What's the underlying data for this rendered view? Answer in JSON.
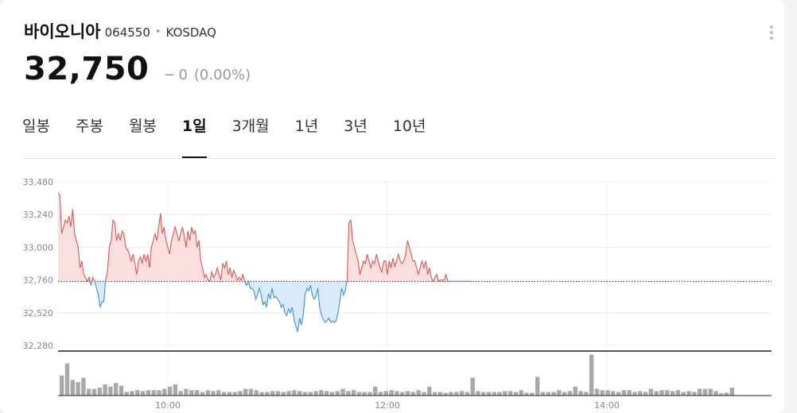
{
  "stock": {
    "name": "바이오니아",
    "code": "064550",
    "market": "KOSDAQ",
    "price": "32,750",
    "change_sign": "−",
    "change": "0",
    "change_pct": "(0.00%)"
  },
  "tabs": [
    {
      "label": "일봉",
      "active": false
    },
    {
      "label": "주봉",
      "active": false
    },
    {
      "label": "월봉",
      "active": false
    },
    {
      "label": "1일",
      "active": true
    },
    {
      "label": "3개월",
      "active": false
    },
    {
      "label": "1년",
      "active": false
    },
    {
      "label": "3년",
      "active": false
    },
    {
      "label": "10년",
      "active": false
    }
  ],
  "colors": {
    "up": "#e05555",
    "up_fill": "#fbdede",
    "down": "#3d8fd6",
    "down_fill": "#d9ebfb",
    "volume": "#a8a8a8"
  },
  "chart_data": {
    "type": "area",
    "y_ticks": [
      "33,480",
      "33,240",
      "33,000",
      "32,760",
      "32,520",
      "32,280"
    ],
    "y_tick_values": [
      33480,
      33240,
      33000,
      32760,
      32520,
      32280
    ],
    "ylim": [
      32280,
      33480
    ],
    "baseline": 32750,
    "x_ticks": [
      "10:00",
      "12:00",
      "14:00"
    ],
    "x_tick_minutes": [
      600,
      720,
      840
    ],
    "xlim": [
      540,
      930
    ],
    "series": [
      {
        "points": [
          [
            540,
            33400
          ],
          [
            541,
            33380
          ],
          [
            542,
            33100
          ],
          [
            543,
            33150
          ],
          [
            544,
            33200
          ],
          [
            545,
            33180
          ],
          [
            546,
            33230
          ],
          [
            547,
            33150
          ],
          [
            548,
            33280
          ],
          [
            549,
            33100
          ],
          [
            550,
            33050
          ],
          [
            551,
            33000
          ],
          [
            552,
            32850
          ],
          [
            553,
            32900
          ],
          [
            554,
            32800
          ],
          [
            555,
            32780
          ],
          [
            556,
            32750
          ],
          [
            557,
            32780
          ],
          [
            558,
            32720
          ],
          [
            559,
            32780
          ],
          [
            560,
            32750
          ],
          [
            561,
            32700
          ],
          [
            562,
            32650
          ],
          [
            563,
            32560
          ],
          [
            564,
            32600
          ],
          [
            565,
            32600
          ],
          [
            566,
            32760
          ],
          [
            567,
            32820
          ],
          [
            568,
            33000
          ],
          [
            569,
            33050
          ],
          [
            570,
            33200
          ],
          [
            571,
            33180
          ],
          [
            572,
            33050
          ],
          [
            573,
            33100
          ],
          [
            574,
            33050
          ],
          [
            575,
            33120
          ],
          [
            576,
            33100
          ],
          [
            577,
            33000
          ],
          [
            578,
            32980
          ],
          [
            579,
            32950
          ],
          [
            580,
            32900
          ],
          [
            581,
            32950
          ],
          [
            582,
            32880
          ],
          [
            583,
            32800
          ],
          [
            584,
            32900
          ],
          [
            585,
            32930
          ],
          [
            586,
            32880
          ],
          [
            587,
            32950
          ],
          [
            588,
            32900
          ],
          [
            589,
            32950
          ],
          [
            590,
            32850
          ],
          [
            591,
            33000
          ],
          [
            592,
            33050
          ],
          [
            593,
            33100
          ],
          [
            594,
            33050
          ],
          [
            595,
            33150
          ],
          [
            596,
            33250
          ],
          [
            597,
            33100
          ],
          [
            598,
            33150
          ],
          [
            599,
            33050
          ],
          [
            600,
            33000
          ],
          [
            601,
            32950
          ],
          [
            602,
            33050
          ],
          [
            603,
            33100
          ],
          [
            604,
            33150
          ],
          [
            605,
            33100
          ],
          [
            606,
            33050
          ],
          [
            607,
            33100
          ],
          [
            608,
            33150
          ],
          [
            609,
            33080
          ],
          [
            610,
            33000
          ],
          [
            611,
            33120
          ],
          [
            612,
            33050
          ],
          [
            613,
            33150
          ],
          [
            614,
            33100
          ],
          [
            615,
            33120
          ],
          [
            616,
            33000
          ],
          [
            617,
            33050
          ],
          [
            618,
            32900
          ],
          [
            619,
            32850
          ],
          [
            620,
            32780
          ],
          [
            621,
            32800
          ],
          [
            622,
            32760
          ],
          [
            623,
            32750
          ],
          [
            624,
            32820
          ],
          [
            625,
            32780
          ],
          [
            626,
            32800
          ],
          [
            627,
            32850
          ],
          [
            628,
            32800
          ],
          [
            629,
            32760
          ],
          [
            630,
            32880
          ],
          [
            631,
            32850
          ],
          [
            632,
            32900
          ],
          [
            633,
            32800
          ],
          [
            634,
            32850
          ],
          [
            635,
            32780
          ],
          [
            636,
            32830
          ],
          [
            637,
            32800
          ],
          [
            638,
            32760
          ],
          [
            639,
            32780
          ],
          [
            640,
            32760
          ],
          [
            641,
            32800
          ],
          [
            642,
            32750
          ],
          [
            643,
            32720
          ],
          [
            644,
            32750
          ],
          [
            645,
            32700
          ],
          [
            646,
            32700
          ],
          [
            647,
            32680
          ],
          [
            648,
            32620
          ],
          [
            649,
            32650
          ],
          [
            650,
            32700
          ],
          [
            651,
            32650
          ],
          [
            652,
            32580
          ],
          [
            653,
            32600
          ],
          [
            654,
            32560
          ],
          [
            655,
            32660
          ],
          [
            656,
            32620
          ],
          [
            657,
            32700
          ],
          [
            658,
            32630
          ],
          [
            659,
            32640
          ],
          [
            660,
            32620
          ],
          [
            661,
            32600
          ],
          [
            662,
            32560
          ],
          [
            663,
            32580
          ],
          [
            664,
            32520
          ],
          [
            665,
            32500
          ],
          [
            666,
            32550
          ],
          [
            667,
            32520
          ],
          [
            668,
            32560
          ],
          [
            669,
            32470
          ],
          [
            670,
            32420
          ],
          [
            671,
            32380
          ],
          [
            672,
            32480
          ],
          [
            673,
            32430
          ],
          [
            674,
            32500
          ],
          [
            675,
            32650
          ],
          [
            676,
            32700
          ],
          [
            677,
            32680
          ],
          [
            678,
            32720
          ],
          [
            679,
            32650
          ],
          [
            680,
            32620
          ],
          [
            681,
            32640
          ],
          [
            682,
            32700
          ],
          [
            683,
            32560
          ],
          [
            684,
            32500
          ],
          [
            685,
            32470
          ],
          [
            686,
            32450
          ],
          [
            687,
            32460
          ],
          [
            688,
            32480
          ],
          [
            689,
            32450
          ],
          [
            690,
            32460
          ],
          [
            691,
            32450
          ],
          [
            692,
            32460
          ],
          [
            693,
            32520
          ],
          [
            694,
            32600
          ],
          [
            695,
            32700
          ],
          [
            696,
            32650
          ],
          [
            697,
            32680
          ],
          [
            698,
            32760
          ],
          [
            699,
            33180
          ],
          [
            700,
            33200
          ],
          [
            701,
            33050
          ],
          [
            702,
            33000
          ],
          [
            703,
            32950
          ],
          [
            704,
            32900
          ],
          [
            705,
            32800
          ],
          [
            706,
            32850
          ],
          [
            707,
            32900
          ],
          [
            708,
            32880
          ],
          [
            709,
            32950
          ],
          [
            710,
            32900
          ],
          [
            711,
            32850
          ],
          [
            712,
            32900
          ],
          [
            713,
            32880
          ],
          [
            714,
            32950
          ],
          [
            715,
            32900
          ],
          [
            716,
            32850
          ],
          [
            717,
            32820
          ],
          [
            718,
            32900
          ],
          [
            719,
            32900
          ],
          [
            720,
            32800
          ],
          [
            721,
            32900
          ],
          [
            722,
            32850
          ],
          [
            723,
            32920
          ],
          [
            724,
            32860
          ],
          [
            725,
            32900
          ],
          [
            726,
            32950
          ],
          [
            727,
            32900
          ],
          [
            728,
            32880
          ],
          [
            729,
            32900
          ],
          [
            730,
            32950
          ],
          [
            731,
            33050
          ],
          [
            732,
            33000
          ],
          [
            733,
            32950
          ],
          [
            734,
            32900
          ],
          [
            735,
            32900
          ],
          [
            736,
            32850
          ],
          [
            737,
            32800
          ],
          [
            738,
            32860
          ],
          [
            739,
            32900
          ],
          [
            740,
            32850
          ],
          [
            741,
            32900
          ],
          [
            742,
            32800
          ],
          [
            743,
            32850
          ],
          [
            744,
            32780
          ],
          [
            745,
            32750
          ],
          [
            746,
            32780
          ],
          [
            747,
            32800
          ],
          [
            748,
            32750
          ],
          [
            749,
            32760
          ],
          [
            750,
            32760
          ],
          [
            751,
            32760
          ],
          [
            752,
            32800
          ],
          [
            753,
            32750
          ],
          [
            754,
            32750
          ],
          [
            755,
            32750
          ],
          [
            756,
            32750
          ],
          [
            757,
            32750
          ],
          [
            758,
            32750
          ],
          [
            759,
            32750
          ],
          [
            760,
            32750
          ],
          [
            761,
            32750
          ],
          [
            762,
            32750
          ],
          [
            763,
            32750
          ],
          [
            764,
            32750
          ],
          [
            765,
            32750
          ],
          [
            766,
            32750
          ]
        ]
      }
    ],
    "volume": [
      0.45,
      0.72,
      0.35,
      0.3,
      0.4,
      0.15,
      0.15,
      0.18,
      0.25,
      0.2,
      0.28,
      0.22,
      0.08,
      0.1,
      0.12,
      0.1,
      0.12,
      0.12,
      0.12,
      0.15,
      0.2,
      0.25,
      0.1,
      0.15,
      0.12,
      0.12,
      0.08,
      0.12,
      0.1,
      0.12,
      0.08,
      0.08,
      0.08,
      0.1,
      0.15,
      0.15,
      0.12,
      0.08,
      0.08,
      0.1,
      0.1,
      0.08,
      0.1,
      0.12,
      0.1,
      0.08,
      0.08,
      0.1,
      0.12,
      0.1,
      0.08,
      0.1,
      0.15,
      0.1,
      0.12,
      0.08,
      0.08,
      0.08,
      0.2,
      0.08,
      0.1,
      0.12,
      0.1,
      0.08,
      0.1,
      0.08,
      0.12,
      0.08,
      0.2,
      0.08,
      0.08,
      0.06,
      0.08,
      0.08,
      0.1,
      0.08,
      0.4,
      0.1,
      0.08,
      0.08,
      0.08,
      0.08,
      0.1,
      0.1,
      0.08,
      0.12,
      0.06,
      0.06,
      0.42,
      0.08,
      0.08,
      0.08,
      0.12,
      0.08,
      0.1,
      0.2,
      0.1,
      0.08,
      0.92,
      0.15,
      0.12,
      0.12,
      0.1,
      0.08,
      0.12,
      0.12,
      0.08,
      0.1,
      0.08,
      0.15,
      0.1,
      0.12,
      0.12,
      0.1,
      0.12,
      0.08,
      0.1,
      0.08,
      0.15,
      0.15,
      0.15,
      0.1,
      0.05,
      0.06,
      0.18
    ]
  }
}
